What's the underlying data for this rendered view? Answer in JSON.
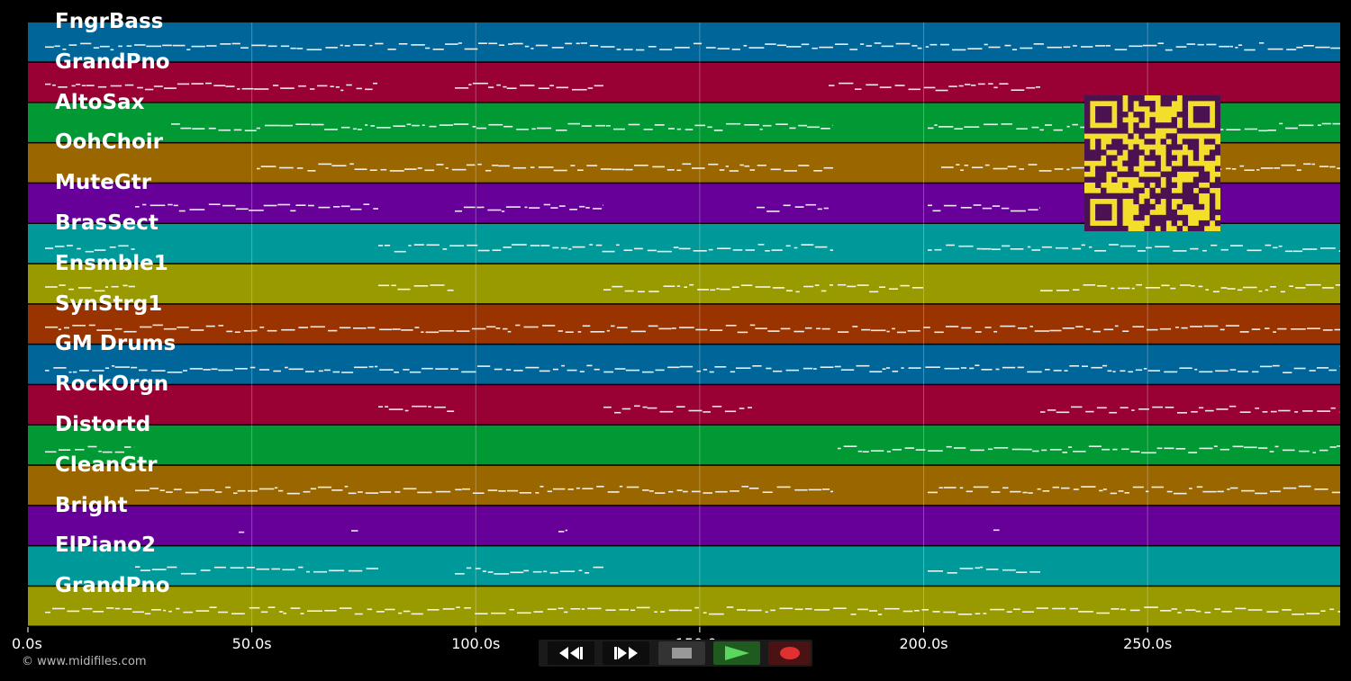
{
  "tracks": [
    {
      "name": "FngrBass",
      "color": "#006699"
    },
    {
      "name": "GrandPno",
      "color": "#990033"
    },
    {
      "name": "AltoSax",
      "color": "#009933"
    },
    {
      "name": "OohChoir",
      "color": "#996600"
    },
    {
      "name": "MuteGtr",
      "color": "#660099"
    },
    {
      "name": "BrasSect",
      "color": "#009999"
    },
    {
      "name": "Ensmble1",
      "color": "#999900"
    },
    {
      "name": "SynStrg1",
      "color": "#993300"
    },
    {
      "name": "GM Drums",
      "color": "#006699"
    },
    {
      "name": "RockOrgn",
      "color": "#990033"
    },
    {
      "name": "Distortd",
      "color": "#009933"
    },
    {
      "name": "CleanGtr",
      "color": "#996600"
    },
    {
      "name": "Bright",
      "color": "#660099"
    },
    {
      "name": "ElPiano2",
      "color": "#009999"
    },
    {
      "name": "GrandPno",
      "color": "#999900"
    }
  ],
  "timeline": {
    "max_seconds": 293,
    "ticks": [
      {
        "value": 0,
        "label": "0.0s"
      },
      {
        "value": 50,
        "label": "50.0s"
      },
      {
        "value": 100,
        "label": "100.0s"
      },
      {
        "value": 150,
        "label": "150.0s"
      },
      {
        "value": 200,
        "label": "200.0s"
      },
      {
        "value": 250,
        "label": "250.0s"
      }
    ]
  },
  "copyright": "© www.midifiles.com",
  "transport": {
    "buttons": [
      {
        "name": "rewind-button",
        "icon": "rewind-icon"
      },
      {
        "name": "fast-forward-button",
        "icon": "fast-forward-icon"
      },
      {
        "name": "stop-button",
        "icon": "stop-icon"
      },
      {
        "name": "play-button",
        "icon": "play-icon"
      },
      {
        "name": "record-button",
        "icon": "record-icon"
      }
    ]
  },
  "colors": {
    "qr_background": "#f3df2a",
    "qr_modules": "#4a1252",
    "note": "#ffffff"
  }
}
